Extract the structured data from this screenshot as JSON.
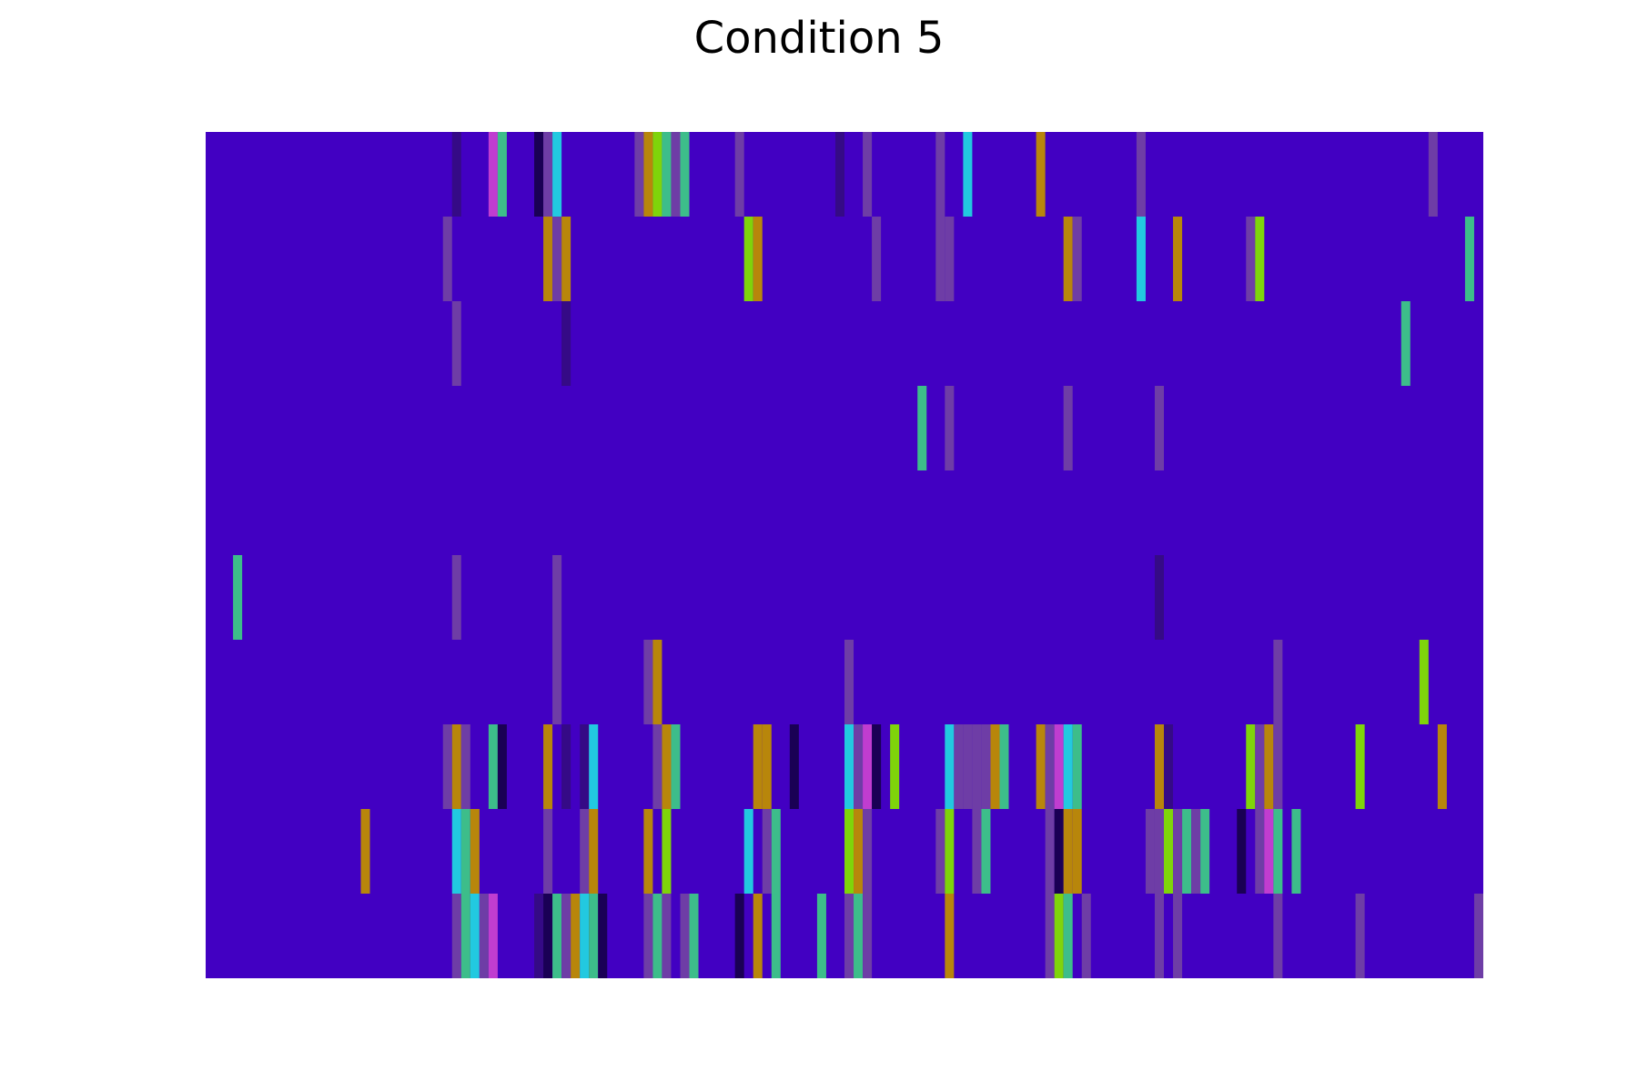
{
  "chart_data": {
    "type": "heatmap",
    "title": "Condition 5",
    "xlabel": "",
    "ylabel": "",
    "axes_visible": false,
    "grid": false,
    "legend": "none",
    "n_rows": 10,
    "n_cols": 140,
    "background_color": "#4200c2",
    "colors": {
      "1": "#350a86",
      "2": "#6e3da6",
      "3": "#3dbd8a",
      "4": "#b8860b",
      "5": "#7fd40a",
      "6": "#22c9e0",
      "7": "#c03dd0",
      "8": "#1a0055"
    },
    "rows": [
      {
        "row": 0,
        "cells": [
          [
            27,
            1
          ],
          [
            31,
            7
          ],
          [
            32,
            3
          ],
          [
            36,
            8
          ],
          [
            37,
            2
          ],
          [
            38,
            6
          ],
          [
            47,
            2
          ],
          [
            48,
            4
          ],
          [
            49,
            5
          ],
          [
            50,
            3
          ],
          [
            51,
            2
          ],
          [
            52,
            3
          ],
          [
            58,
            2
          ],
          [
            69,
            1
          ],
          [
            72,
            2
          ],
          [
            80,
            2
          ],
          [
            83,
            6
          ],
          [
            91,
            4
          ],
          [
            102,
            2
          ],
          [
            134,
            2
          ]
        ]
      },
      {
        "row": 1,
        "cells": [
          [
            26,
            2
          ],
          [
            37,
            4
          ],
          [
            38,
            2
          ],
          [
            39,
            4
          ],
          [
            59,
            5
          ],
          [
            60,
            4
          ],
          [
            73,
            2
          ],
          [
            80,
            2
          ],
          [
            81,
            2
          ],
          [
            94,
            4
          ],
          [
            95,
            2
          ],
          [
            102,
            6
          ],
          [
            106,
            4
          ],
          [
            114,
            2
          ],
          [
            115,
            5
          ],
          [
            138,
            3
          ]
        ]
      },
      {
        "row": 2,
        "cells": [
          [
            27,
            2
          ],
          [
            39,
            1
          ],
          [
            131,
            3
          ]
        ]
      },
      {
        "row": 3,
        "cells": [
          [
            78,
            3
          ],
          [
            81,
            2
          ],
          [
            94,
            2
          ],
          [
            104,
            2
          ]
        ]
      },
      {
        "row": 4,
        "cells": []
      },
      {
        "row": 5,
        "cells": [
          [
            3,
            3
          ],
          [
            27,
            2
          ],
          [
            38,
            2
          ],
          [
            104,
            1
          ]
        ]
      },
      {
        "row": 6,
        "cells": [
          [
            38,
            2
          ],
          [
            48,
            2
          ],
          [
            49,
            4
          ],
          [
            70,
            2
          ],
          [
            117,
            2
          ],
          [
            133,
            5
          ]
        ]
      },
      {
        "row": 7,
        "cells": [
          [
            26,
            2
          ],
          [
            27,
            4
          ],
          [
            28,
            2
          ],
          [
            31,
            3
          ],
          [
            32,
            8
          ],
          [
            37,
            4
          ],
          [
            39,
            1
          ],
          [
            41,
            1
          ],
          [
            42,
            6
          ],
          [
            49,
            2
          ],
          [
            50,
            4
          ],
          [
            51,
            3
          ],
          [
            60,
            4
          ],
          [
            61,
            4
          ],
          [
            64,
            8
          ],
          [
            70,
            6
          ],
          [
            71,
            2
          ],
          [
            72,
            7
          ],
          [
            73,
            8
          ],
          [
            75,
            5
          ],
          [
            81,
            6
          ],
          [
            82,
            2
          ],
          [
            83,
            2
          ],
          [
            84,
            2
          ],
          [
            85,
            2
          ],
          [
            86,
            4
          ],
          [
            87,
            3
          ],
          [
            91,
            4
          ],
          [
            92,
            2
          ],
          [
            93,
            7
          ],
          [
            94,
            6
          ],
          [
            95,
            3
          ],
          [
            104,
            4
          ],
          [
            105,
            1
          ],
          [
            114,
            5
          ],
          [
            115,
            2
          ],
          [
            116,
            4
          ],
          [
            117,
            2
          ],
          [
            126,
            5
          ],
          [
            135,
            4
          ]
        ]
      },
      {
        "row": 8,
        "cells": [
          [
            17,
            4
          ],
          [
            27,
            6
          ],
          [
            28,
            3
          ],
          [
            29,
            4
          ],
          [
            37,
            2
          ],
          [
            41,
            2
          ],
          [
            42,
            4
          ],
          [
            48,
            4
          ],
          [
            50,
            5
          ],
          [
            59,
            6
          ],
          [
            61,
            2
          ],
          [
            62,
            3
          ],
          [
            70,
            5
          ],
          [
            71,
            4
          ],
          [
            72,
            2
          ],
          [
            80,
            2
          ],
          [
            81,
            5
          ],
          [
            84,
            2
          ],
          [
            85,
            3
          ],
          [
            92,
            2
          ],
          [
            93,
            8
          ],
          [
            94,
            4
          ],
          [
            95,
            4
          ],
          [
            103,
            2
          ],
          [
            104,
            2
          ],
          [
            105,
            5
          ],
          [
            106,
            2
          ],
          [
            107,
            3
          ],
          [
            108,
            2
          ],
          [
            109,
            3
          ],
          [
            113,
            8
          ],
          [
            115,
            2
          ],
          [
            116,
            7
          ],
          [
            117,
            3
          ],
          [
            119,
            3
          ]
        ]
      },
      {
        "row": 9,
        "cells": [
          [
            27,
            2
          ],
          [
            28,
            3
          ],
          [
            29,
            6
          ],
          [
            30,
            2
          ],
          [
            31,
            7
          ],
          [
            36,
            1
          ],
          [
            37,
            8
          ],
          [
            38,
            3
          ],
          [
            39,
            2
          ],
          [
            40,
            4
          ],
          [
            41,
            6
          ],
          [
            42,
            3
          ],
          [
            43,
            8
          ],
          [
            48,
            2
          ],
          [
            49,
            3
          ],
          [
            50,
            2
          ],
          [
            52,
            2
          ],
          [
            53,
            3
          ],
          [
            58,
            8
          ],
          [
            60,
            4
          ],
          [
            62,
            3
          ],
          [
            67,
            3
          ],
          [
            70,
            2
          ],
          [
            71,
            3
          ],
          [
            72,
            2
          ],
          [
            81,
            4
          ],
          [
            92,
            2
          ],
          [
            93,
            5
          ],
          [
            94,
            3
          ],
          [
            96,
            2
          ],
          [
            104,
            2
          ],
          [
            106,
            2
          ],
          [
            117,
            2
          ],
          [
            126,
            2
          ],
          [
            139,
            2
          ]
        ]
      }
    ]
  }
}
